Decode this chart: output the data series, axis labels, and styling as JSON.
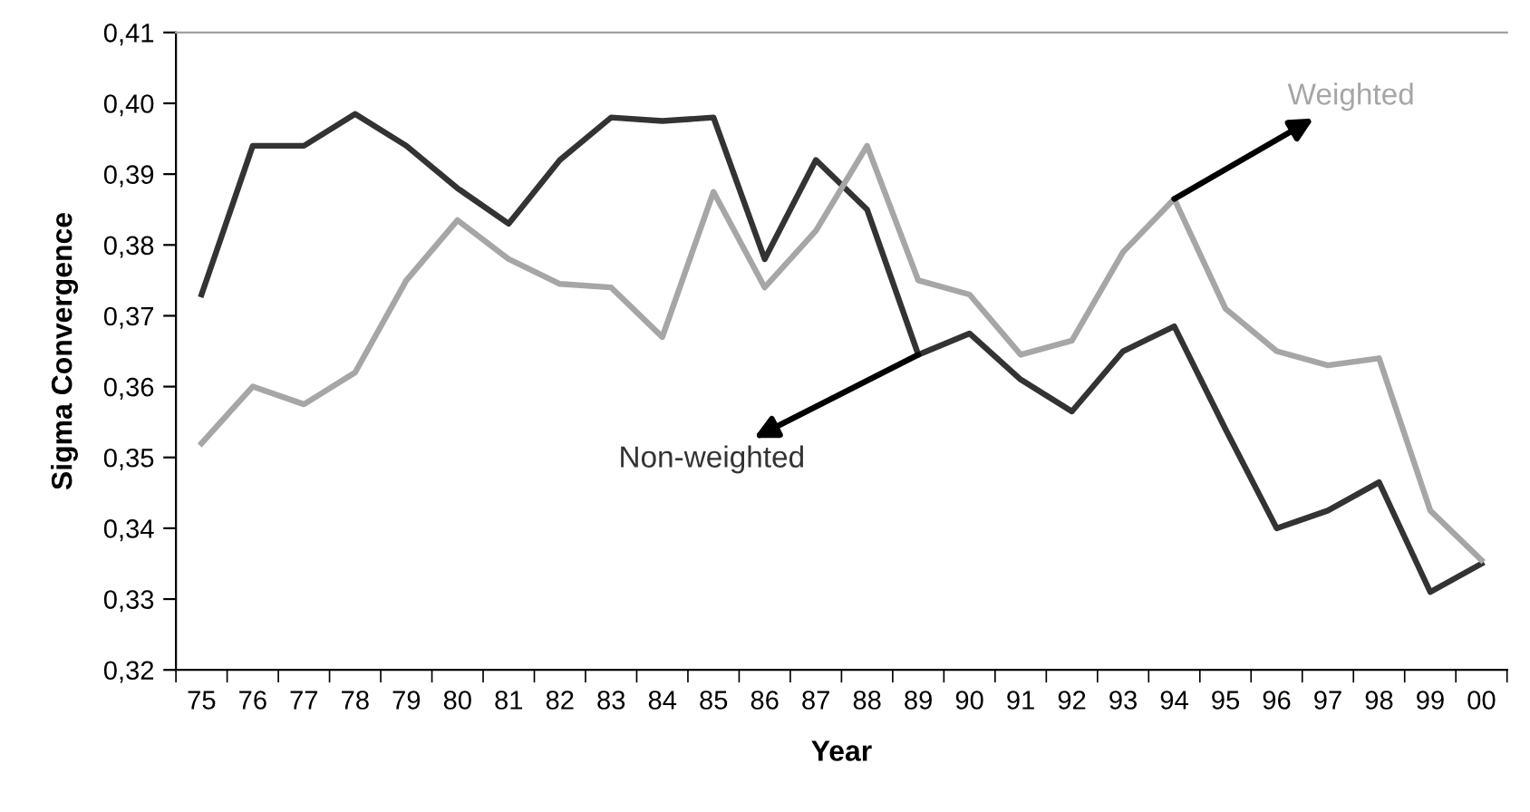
{
  "chart_data": {
    "type": "line",
    "xlabel": "Year",
    "ylabel": "Sigma Convergence",
    "categories": [
      "75",
      "76",
      "77",
      "78",
      "79",
      "80",
      "81",
      "82",
      "83",
      "84",
      "85",
      "86",
      "87",
      "88",
      "89",
      "90",
      "91",
      "92",
      "93",
      "94",
      "95",
      "96",
      "97",
      "98",
      "99",
      "00"
    ],
    "series": [
      {
        "name": "Non-weighted",
        "color": "#333333",
        "values": [
          0.373,
          0.394,
          0.394,
          0.3985,
          0.394,
          0.388,
          0.383,
          0.392,
          0.398,
          0.3975,
          0.398,
          0.378,
          0.392,
          0.385,
          0.3645,
          0.3675,
          0.361,
          0.3565,
          0.365,
          0.3685,
          0.354,
          0.34,
          0.3425,
          0.3465,
          0.331,
          0.335
        ]
      },
      {
        "name": "Weighted",
        "color": "#a6a6a6",
        "values": [
          0.352,
          0.36,
          0.3575,
          0.362,
          0.375,
          0.3835,
          0.378,
          0.3745,
          0.374,
          0.367,
          0.3875,
          0.374,
          0.382,
          0.394,
          0.375,
          0.373,
          0.3645,
          0.3665,
          0.379,
          0.3865,
          0.371,
          0.365,
          0.363,
          0.364,
          0.3425,
          0.3355
        ]
      }
    ],
    "ylim": [
      0.32,
      0.41
    ],
    "yticks": [
      {
        "value": 0.32,
        "label": "0,32"
      },
      {
        "value": 0.33,
        "label": "0,33"
      },
      {
        "value": 0.34,
        "label": "0,34"
      },
      {
        "value": 0.35,
        "label": "0,35"
      },
      {
        "value": 0.36,
        "label": "0,36"
      },
      {
        "value": 0.37,
        "label": "0,37"
      },
      {
        "value": 0.38,
        "label": "0,38"
      },
      {
        "value": 0.39,
        "label": "0,39"
      },
      {
        "value": 0.4,
        "label": "0,40"
      },
      {
        "value": 0.41,
        "label": "0,41"
      }
    ],
    "grid": false,
    "legend": false,
    "marker": "none",
    "line_style": "solid"
  }
}
